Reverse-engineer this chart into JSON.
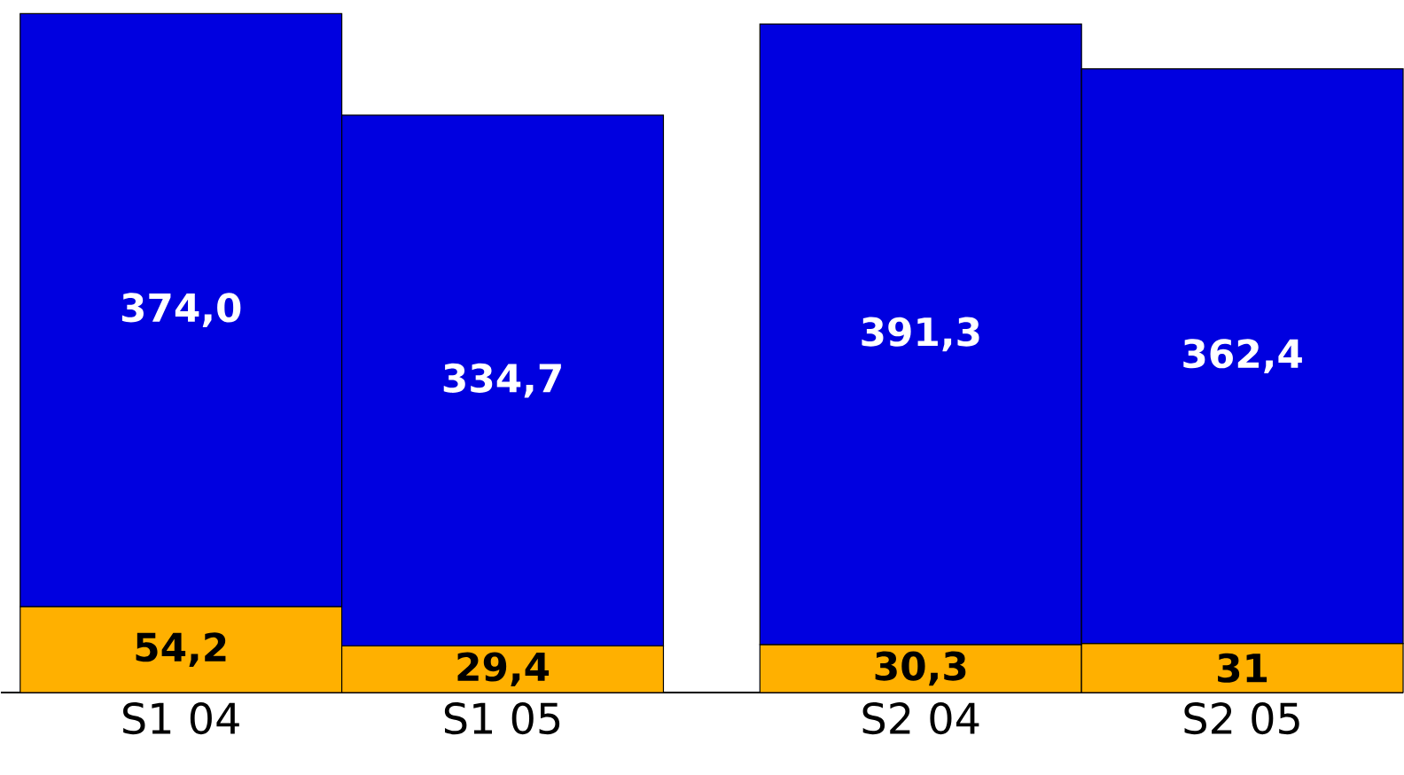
{
  "chart_data": {
    "type": "bar",
    "stacked": true,
    "categories": [
      "S1 04",
      "S1 05",
      "S2 04",
      "S2 05"
    ],
    "series": [
      {
        "color": "#ffb000",
        "values": [
          54.2,
          29.4,
          30.3,
          31
        ],
        "value_labels": [
          "54,2",
          "29,4",
          "30,3",
          "31"
        ]
      },
      {
        "color": "#0000e0",
        "values": [
          374.0,
          334.7,
          391.3,
          362.4
        ],
        "value_labels": [
          "374,0",
          "334,7",
          "391,3",
          "362,4"
        ]
      }
    ]
  }
}
